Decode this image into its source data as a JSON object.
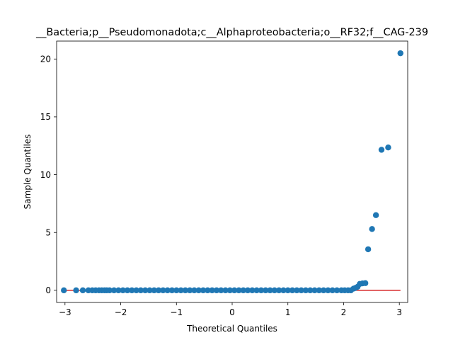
{
  "chart_data": {
    "type": "scatter",
    "title": "__Bacteria;p__Pseudomonadota;c__Alphaproteobacteria;o__RF32;f__CAG-239",
    "xlabel": "Theoretical Quantiles",
    "ylabel": "Sample Quantiles",
    "xlim": [
      -3.15,
      3.15
    ],
    "ylim": [
      -1.05,
      21.55
    ],
    "xticks": [
      -3,
      -2,
      -1,
      0,
      1,
      2,
      3
    ],
    "yticks": [
      0,
      5,
      10,
      15,
      20
    ],
    "grid": false,
    "series": [
      {
        "kind": "points",
        "color": "#1f77b4",
        "points": [
          [
            -3.02,
            0.0
          ],
          [
            -2.8,
            0.0
          ],
          [
            -2.68,
            0.0
          ],
          [
            -2.58,
            0.0
          ],
          [
            -2.51,
            0.0
          ],
          [
            -2.45,
            0.0
          ],
          [
            -2.39,
            0.0
          ],
          [
            -2.34,
            0.0
          ],
          [
            -2.29,
            0.0
          ],
          [
            -2.25,
            0.0
          ],
          [
            -2.2,
            0.0
          ],
          [
            -2.12,
            0.0
          ],
          [
            -2.04,
            0.0
          ],
          [
            -1.96,
            0.0
          ],
          [
            -1.88,
            0.0
          ],
          [
            -1.8,
            0.0
          ],
          [
            -1.72,
            0.0
          ],
          [
            -1.64,
            0.0
          ],
          [
            -1.56,
            0.0
          ],
          [
            -1.48,
            0.0
          ],
          [
            -1.4,
            0.0
          ],
          [
            -1.32,
            0.0
          ],
          [
            -1.24,
            0.0
          ],
          [
            -1.16,
            0.0
          ],
          [
            -1.08,
            0.0
          ],
          [
            -1.0,
            0.0
          ],
          [
            -0.92,
            0.0
          ],
          [
            -0.84,
            0.0
          ],
          [
            -0.76,
            0.0
          ],
          [
            -0.68,
            0.0
          ],
          [
            -0.6,
            0.0
          ],
          [
            -0.52,
            0.0
          ],
          [
            -0.44,
            0.0
          ],
          [
            -0.36,
            0.0
          ],
          [
            -0.28,
            0.0
          ],
          [
            -0.2,
            0.0
          ],
          [
            -0.12,
            0.0
          ],
          [
            -0.04,
            0.0
          ],
          [
            0.04,
            0.0
          ],
          [
            0.12,
            0.0
          ],
          [
            0.2,
            0.0
          ],
          [
            0.28,
            0.0
          ],
          [
            0.36,
            0.0
          ],
          [
            0.44,
            0.0
          ],
          [
            0.52,
            0.0
          ],
          [
            0.6,
            0.0
          ],
          [
            0.68,
            0.0
          ],
          [
            0.76,
            0.0
          ],
          [
            0.84,
            0.0
          ],
          [
            0.92,
            0.0
          ],
          [
            1.0,
            0.0
          ],
          [
            1.08,
            0.0
          ],
          [
            1.16,
            0.0
          ],
          [
            1.24,
            0.0
          ],
          [
            1.32,
            0.0
          ],
          [
            1.4,
            0.0
          ],
          [
            1.48,
            0.0
          ],
          [
            1.56,
            0.0
          ],
          [
            1.64,
            0.0
          ],
          [
            1.72,
            0.0
          ],
          [
            1.8,
            0.0
          ],
          [
            1.88,
            0.0
          ],
          [
            1.96,
            0.0
          ],
          [
            2.02,
            0.0
          ],
          [
            2.08,
            0.0
          ],
          [
            2.13,
            0.0
          ],
          [
            2.18,
            0.15
          ],
          [
            2.21,
            0.2
          ],
          [
            2.25,
            0.3
          ],
          [
            2.29,
            0.55
          ],
          [
            2.34,
            0.6
          ],
          [
            2.39,
            0.62
          ],
          [
            2.44,
            3.55
          ],
          [
            2.51,
            5.3
          ],
          [
            2.58,
            6.5
          ],
          [
            2.68,
            12.15
          ],
          [
            2.8,
            12.35
          ],
          [
            3.02,
            20.5
          ]
        ]
      },
      {
        "kind": "line",
        "color": "#d62728",
        "points": [
          [
            -3.02,
            0.0
          ],
          [
            3.02,
            0.0
          ]
        ]
      }
    ]
  }
}
